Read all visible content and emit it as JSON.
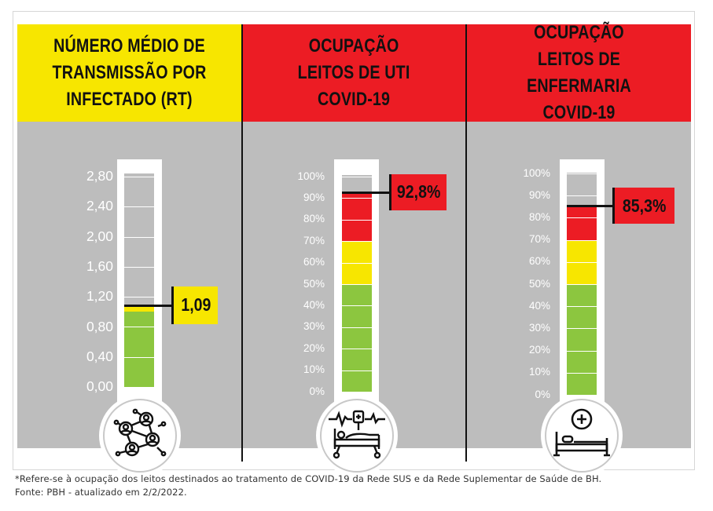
{
  "colors": {
    "yellow": "#f7e600",
    "red": "#ec1c24",
    "green": "#8cc63f",
    "gray_panel": "#bdbdbd"
  },
  "panels": [
    {
      "header": "NÚMERO MÉDIO DE\nTRANSMISSÃO POR\nINFECTADO (RT)",
      "header_color": "yellow",
      "scale_labels": [
        "2,80",
        "2,40",
        "2,00",
        "1,60",
        "1,20",
        "0,80",
        "0,40",
        "0,00"
      ],
      "scale_max": 2.8,
      "value": 1.09,
      "value_label": "1,09",
      "bands": [
        {
          "from": 0,
          "to": 1.0,
          "color": "green"
        },
        {
          "from": 1.0,
          "to": 1.09,
          "color": "yellow"
        }
      ],
      "icon": "people-network-icon"
    },
    {
      "header": "OCUPAÇÃO\nLEITOS DE UTI\nCOVID-19",
      "header_color": "red",
      "scale_labels": [
        "100%",
        "90%",
        "80%",
        "70%",
        "60%",
        "50%",
        "40%",
        "30%",
        "20%",
        "10%",
        "0%"
      ],
      "scale_max": 100,
      "value": 92.8,
      "value_label": "92,8%",
      "bands": [
        {
          "from": 0,
          "to": 50,
          "color": "green"
        },
        {
          "from": 50,
          "to": 70,
          "color": "yellow"
        },
        {
          "from": 70,
          "to": 92.8,
          "color": "red"
        }
      ],
      "icon": "icu-bed-icon"
    },
    {
      "header": "OCUPAÇÃO\nLEITOS DE ENFERMARIA\nCOVID-19",
      "header_color": "red",
      "scale_labels": [
        "100%",
        "90%",
        "80%",
        "70%",
        "60%",
        "50%",
        "40%",
        "30%",
        "20%",
        "10%",
        "0%"
      ],
      "scale_max": 100,
      "value": 85.3,
      "value_label": "85,3%",
      "bands": [
        {
          "from": 0,
          "to": 50,
          "color": "green"
        },
        {
          "from": 50,
          "to": 70,
          "color": "yellow"
        },
        {
          "from": 70,
          "to": 85.3,
          "color": "red"
        }
      ],
      "icon": "ward-bed-icon"
    }
  ],
  "footnote": {
    "line1": "*Refere-se à ocupação dos leitos destinados ao tratamento de COVID-19 da Rede SUS e da Rede Suplementar de Saúde de BH.",
    "line2": "Fonte: PBH - atualizado em 2/2/2022."
  }
}
